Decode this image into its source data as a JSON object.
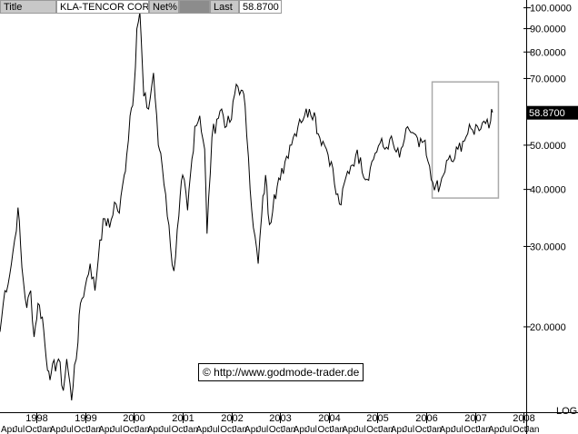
{
  "header": {
    "title_label": "Title",
    "title_value": "KLA-TENCOR CORP",
    "net_label": "Net%",
    "last_label": "Last",
    "last_value": "58.8700"
  },
  "credit": "© http://www.godmode-trader.de",
  "chart_data": {
    "type": "line",
    "title": "KLA-TENCOR CORP",
    "y_scale": "log",
    "y_scale_label": "LOG",
    "ylim": [
      13.0,
      104.0
    ],
    "y_ticks": [
      {
        "value": 100,
        "label": "100.0000"
      },
      {
        "value": 90,
        "label": "90.0000"
      },
      {
        "value": 80,
        "label": "80.0000"
      },
      {
        "value": 70,
        "label": "70.0000"
      },
      {
        "value": 50,
        "label": "50.0000"
      },
      {
        "value": 40,
        "label": "40.0000"
      },
      {
        "value": 30,
        "label": "30.0000"
      },
      {
        "value": 20,
        "label": "20.0000"
      }
    ],
    "last_price": {
      "value": 58.87,
      "label": "58.8700"
    },
    "x_years": [
      "1998",
      "1999",
      "2000",
      "2001",
      "2002",
      "2003",
      "2004",
      "2005",
      "2006",
      "2007",
      "2008"
    ],
    "x_quarters": [
      "Apr",
      "Jul",
      "Oct",
      "Jan"
    ],
    "xlim": [
      1997.25,
      2008.05
    ],
    "series": [
      {
        "x": [
          1997.25,
          1997.35,
          1997.45,
          1997.55,
          1997.62,
          1997.7,
          1997.8,
          1997.88,
          1997.95,
          1998.03,
          1998.12,
          1998.2,
          1998.25,
          1998.3,
          1998.45,
          1998.55,
          1998.62,
          1998.72,
          1998.78,
          1998.85,
          1998.9,
          1999.0,
          1999.1,
          1999.2,
          1999.3,
          1999.4,
          1999.5,
          1999.6,
          1999.7,
          1999.8,
          1999.85,
          1999.92,
          2000.0,
          2000.06,
          2000.12,
          2000.2,
          2000.3,
          2000.4,
          2000.5,
          2000.55,
          2000.65,
          2000.75,
          2000.82,
          2000.92,
          2001.0,
          2001.1,
          2001.25,
          2001.35,
          2001.45,
          2001.5,
          2001.6,
          2001.7,
          2001.8,
          2001.9,
          2002.0,
          2002.1,
          2002.2,
          2002.28,
          2002.35,
          2002.45,
          2002.55,
          2002.62,
          2002.7,
          2002.78,
          2002.88,
          2003.0,
          2003.1,
          2003.2,
          2003.3,
          2003.4,
          2003.5,
          2003.6,
          2003.7,
          2003.78,
          2003.88,
          2003.95,
          2004.05,
          2004.15,
          2004.25,
          2004.35,
          2004.45,
          2004.55,
          2004.65,
          2004.75,
          2004.85,
          2004.95,
          2005.05,
          2005.15,
          2005.25,
          2005.35,
          2005.45,
          2005.55,
          2005.65,
          2005.75,
          2005.85,
          2005.95,
          2006.0,
          2006.1,
          2006.2,
          2006.25,
          2006.35,
          2006.45,
          2006.55,
          2006.65,
          2006.75,
          2006.85,
          2006.95,
          2007.05,
          2007.15,
          2007.25,
          2007.32,
          2007.36
        ],
        "y": [
          19.5,
          24.0,
          26.0,
          31.0,
          36.5,
          27.0,
          22.0,
          24.0,
          19.0,
          22.5,
          21.0,
          17.0,
          16.0,
          15.8,
          17.0,
          14.5,
          17.0,
          13.8,
          16.5,
          18.5,
          22.5,
          24.5,
          27.5,
          24.0,
          31.0,
          34.5,
          33.0,
          37.5,
          35.5,
          43.0,
          47.5,
          58.0,
          66.0,
          90.0,
          98.0,
          64.0,
          60.0,
          72.0,
          50.0,
          48.0,
          39.0,
          30.0,
          26.5,
          35.0,
          43.0,
          36.0,
          55.0,
          58.0,
          49.0,
          32.0,
          52.0,
          57.0,
          60.0,
          55.0,
          57.0,
          68.0,
          66.0,
          61.0,
          47.0,
          33.0,
          27.5,
          35.0,
          43.0,
          33.5,
          39.0,
          42.0,
          46.0,
          50.0,
          53.0,
          57.0,
          58.0,
          60.0,
          59.0,
          53.0,
          51.0,
          49.0,
          46.0,
          39.0,
          37.0,
          42.5,
          45.0,
          47.5,
          47.0,
          42.0,
          44.5,
          48.0,
          50.5,
          49.0,
          51.5,
          49.0,
          47.0,
          51.5,
          54.0,
          53.0,
          49.5,
          51.0,
          47.5,
          42.0,
          41.0,
          39.5,
          43.0,
          46.5,
          46.0,
          49.0,
          51.0,
          53.0,
          54.0,
          55.0,
          56.0,
          57.0,
          56.5,
          59.0
        ]
      }
    ],
    "highlight": {
      "x": [
        2006.12,
        2007.48
      ],
      "y": [
        38.3,
        68.8
      ]
    },
    "grid": false
  }
}
